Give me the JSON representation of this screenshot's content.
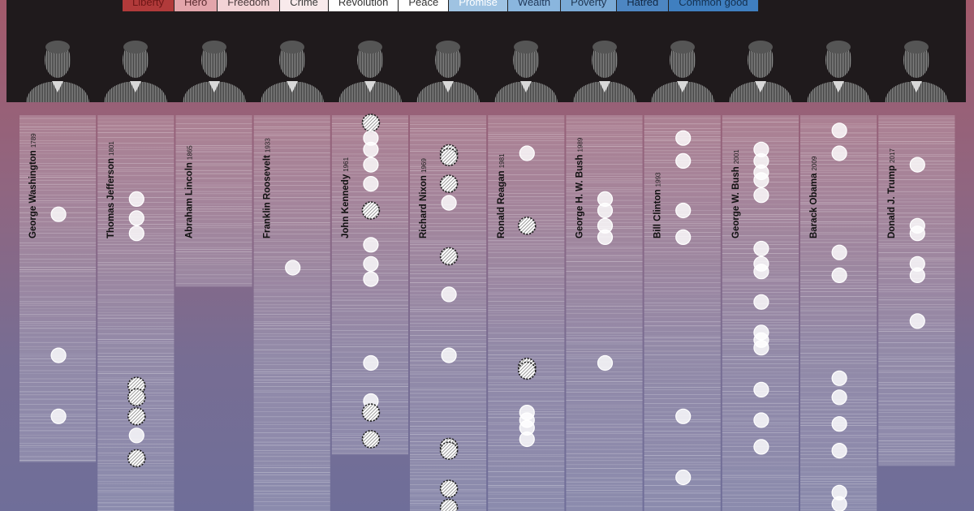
{
  "legend": [
    {
      "label": "Liberty",
      "color": "#b13a3a",
      "text_color": "#6e1616"
    },
    {
      "label": "Hero",
      "color": "#e3a5ab",
      "text_color": "#5a2a2e"
    },
    {
      "label": "Freedom",
      "color": "#f3d3d6",
      "text_color": "#4a3a3c"
    },
    {
      "label": "Crime",
      "color": "#f8eaeb",
      "text_color": "#3a3a3a"
    },
    {
      "label": "Revolution",
      "color": "#ffffff",
      "text_color": "#333333"
    },
    {
      "label": "Peace",
      "color": "#ffffff",
      "text_color": "#333333"
    },
    {
      "label": "Promise",
      "color": "#9fc3e2",
      "text_color": "#ffffff"
    },
    {
      "label": "Wealth",
      "color": "#8ab6de",
      "text_color": "#20385a"
    },
    {
      "label": "Poverty",
      "color": "#7aaad6",
      "text_color": "#1d3450"
    },
    {
      "label": "Hatred",
      "color": "#4d86c2",
      "text_color": "#122844"
    },
    {
      "label": "Common good",
      "color": "#3f7fc0",
      "text_color": "#14304f"
    }
  ],
  "chart_data": {
    "type": "scatter",
    "title": "",
    "xlabel": "",
    "ylabel": "",
    "presidents": [
      {
        "name": "George Washington",
        "year": "1789",
        "column_end": 0.91,
        "mentions": [
          {
            "pos": 0.26,
            "style": "solid"
          },
          {
            "pos": 0.63,
            "style": "solid"
          },
          {
            "pos": 0.79,
            "style": "solid"
          }
        ]
      },
      {
        "name": "Thomas Jefferson",
        "year": "1801",
        "column_end": 1.08,
        "mentions": [
          {
            "pos": 0.22,
            "style": "solid"
          },
          {
            "pos": 0.27,
            "style": "solid"
          },
          {
            "pos": 0.31,
            "style": "solid"
          },
          {
            "pos": 0.71,
            "style": "dashed"
          },
          {
            "pos": 0.74,
            "style": "dashed"
          },
          {
            "pos": 0.79,
            "style": "dashed"
          },
          {
            "pos": 0.84,
            "style": "solid"
          },
          {
            "pos": 0.9,
            "style": "dashed"
          }
        ]
      },
      {
        "name": "Abraham Lincoln",
        "year": "1865",
        "column_end": 0.45,
        "mentions": []
      },
      {
        "name": "Franklin Roosevelt",
        "year": "1933",
        "column_end": 1.08,
        "mentions": [
          {
            "pos": 0.4,
            "style": "solid"
          }
        ]
      },
      {
        "name": "John Kennedy",
        "year": "1961",
        "column_end": 0.89,
        "mentions": [
          {
            "pos": 0.02,
            "style": "dashed"
          },
          {
            "pos": 0.06,
            "style": "solid"
          },
          {
            "pos": 0.09,
            "style": "solid"
          },
          {
            "pos": 0.13,
            "style": "solid"
          },
          {
            "pos": 0.18,
            "style": "solid"
          },
          {
            "pos": 0.25,
            "style": "dashed"
          },
          {
            "pos": 0.34,
            "style": "solid"
          },
          {
            "pos": 0.39,
            "style": "solid"
          },
          {
            "pos": 0.43,
            "style": "solid"
          },
          {
            "pos": 0.65,
            "style": "solid"
          },
          {
            "pos": 0.75,
            "style": "solid"
          },
          {
            "pos": 0.78,
            "style": "dashed"
          },
          {
            "pos": 0.85,
            "style": "dashed"
          }
        ]
      },
      {
        "name": "Richard Nixon",
        "year": "1969",
        "column_end": 1.08,
        "mentions": [
          {
            "pos": 0.1,
            "style": "dashed"
          },
          {
            "pos": 0.11,
            "style": "dashed"
          },
          {
            "pos": 0.18,
            "style": "dashed"
          },
          {
            "pos": 0.23,
            "style": "solid"
          },
          {
            "pos": 0.37,
            "style": "dashed"
          },
          {
            "pos": 0.47,
            "style": "solid"
          },
          {
            "pos": 0.63,
            "style": "solid"
          },
          {
            "pos": 0.87,
            "style": "dashed"
          },
          {
            "pos": 0.88,
            "style": "dashed"
          },
          {
            "pos": 0.98,
            "style": "dashed"
          },
          {
            "pos": 1.03,
            "style": "dashed"
          }
        ]
      },
      {
        "name": "Ronald Reagan",
        "year": "1981",
        "column_end": 1.08,
        "mentions": [
          {
            "pos": 0.1,
            "style": "solid"
          },
          {
            "pos": 0.29,
            "style": "dashed"
          },
          {
            "pos": 0.66,
            "style": "dashed"
          },
          {
            "pos": 0.67,
            "style": "dashed"
          },
          {
            "pos": 0.78,
            "style": "solid"
          },
          {
            "pos": 0.8,
            "style": "solid"
          },
          {
            "pos": 0.82,
            "style": "solid"
          },
          {
            "pos": 0.85,
            "style": "solid"
          }
        ]
      },
      {
        "name": "George H. W. Bush",
        "year": "1989",
        "column_end": 1.08,
        "mentions": [
          {
            "pos": 0.22,
            "style": "solid"
          },
          {
            "pos": 0.25,
            "style": "solid"
          },
          {
            "pos": 0.29,
            "style": "solid"
          },
          {
            "pos": 0.32,
            "style": "solid"
          },
          {
            "pos": 0.65,
            "style": "solid"
          }
        ]
      },
      {
        "name": "Bill Clinton",
        "year": "1993",
        "column_end": 1.08,
        "mentions": [
          {
            "pos": 0.06,
            "style": "solid"
          },
          {
            "pos": 0.12,
            "style": "solid"
          },
          {
            "pos": 0.25,
            "style": "solid"
          },
          {
            "pos": 0.32,
            "style": "solid"
          },
          {
            "pos": 0.79,
            "style": "solid"
          },
          {
            "pos": 0.95,
            "style": "solid"
          }
        ]
      },
      {
        "name": "George W. Bush",
        "year": "2001",
        "column_end": 1.08,
        "mentions": [
          {
            "pos": 0.09,
            "style": "solid"
          },
          {
            "pos": 0.12,
            "style": "solid"
          },
          {
            "pos": 0.15,
            "style": "solid"
          },
          {
            "pos": 0.17,
            "style": "solid"
          },
          {
            "pos": 0.21,
            "style": "solid"
          },
          {
            "pos": 0.35,
            "style": "solid"
          },
          {
            "pos": 0.39,
            "style": "solid"
          },
          {
            "pos": 0.41,
            "style": "solid"
          },
          {
            "pos": 0.49,
            "style": "solid"
          },
          {
            "pos": 0.57,
            "style": "solid"
          },
          {
            "pos": 0.59,
            "style": "solid"
          },
          {
            "pos": 0.61,
            "style": "solid"
          },
          {
            "pos": 0.72,
            "style": "solid"
          },
          {
            "pos": 0.8,
            "style": "solid"
          },
          {
            "pos": 0.87,
            "style": "solid"
          }
        ]
      },
      {
        "name": "Barack Obama",
        "year": "2009",
        "column_end": 1.08,
        "mentions": [
          {
            "pos": 0.04,
            "style": "solid"
          },
          {
            "pos": 0.1,
            "style": "solid"
          },
          {
            "pos": 0.36,
            "style": "solid"
          },
          {
            "pos": 0.42,
            "style": "solid"
          },
          {
            "pos": 0.69,
            "style": "solid"
          },
          {
            "pos": 0.74,
            "style": "solid"
          },
          {
            "pos": 0.81,
            "style": "solid"
          },
          {
            "pos": 0.88,
            "style": "solid"
          },
          {
            "pos": 0.99,
            "style": "solid"
          },
          {
            "pos": 1.02,
            "style": "solid"
          }
        ]
      },
      {
        "name": "Donald J. Trump",
        "year": "2017",
        "column_end": 0.92,
        "mentions": [
          {
            "pos": 0.13,
            "style": "solid"
          },
          {
            "pos": 0.29,
            "style": "solid"
          },
          {
            "pos": 0.31,
            "style": "solid"
          },
          {
            "pos": 0.39,
            "style": "solid"
          },
          {
            "pos": 0.42,
            "style": "solid"
          },
          {
            "pos": 0.54,
            "style": "solid"
          }
        ]
      }
    ]
  }
}
